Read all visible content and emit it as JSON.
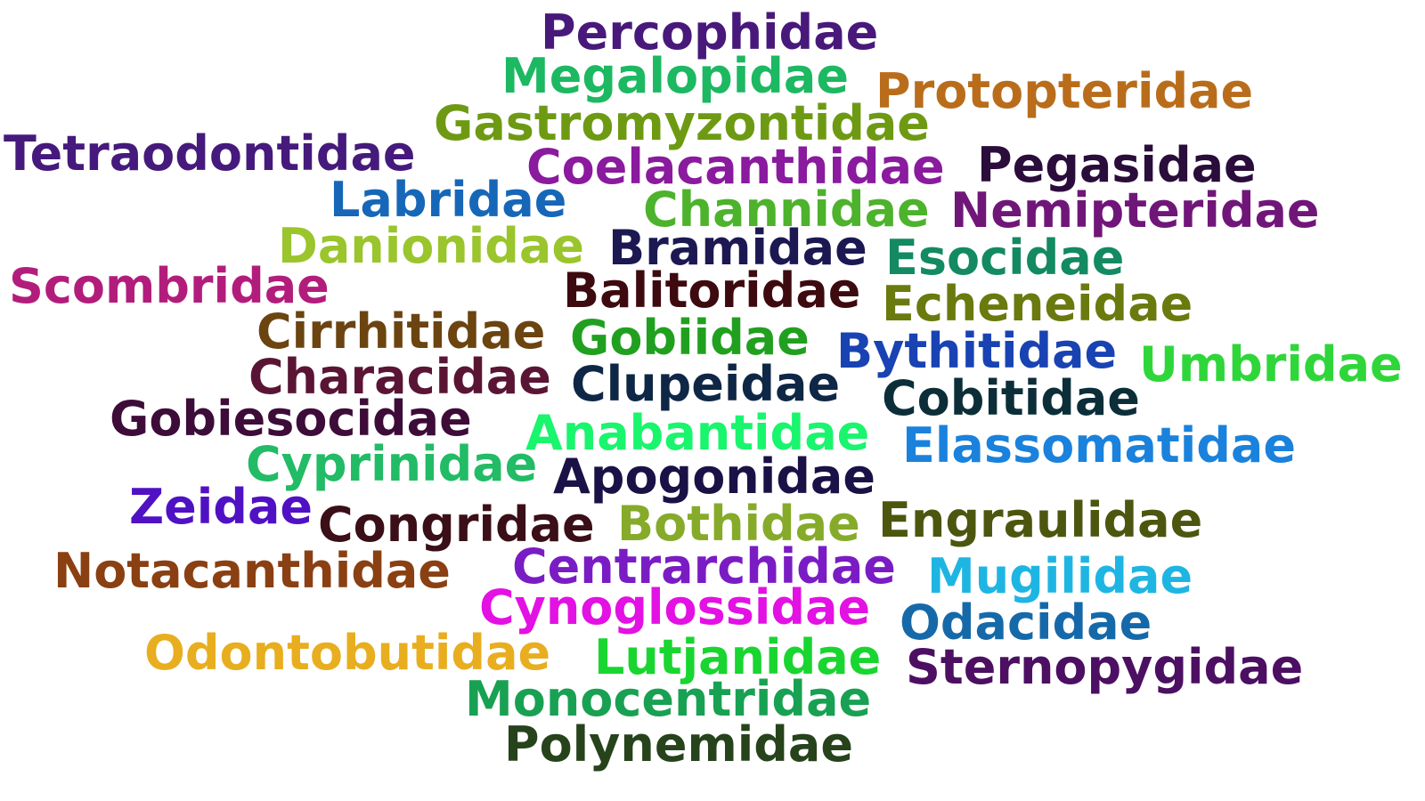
{
  "words": [
    {
      "text": "Percophidae",
      "color": "#48197a"
    },
    {
      "text": "Megalopidae",
      "color": "#1db862"
    },
    {
      "text": "Protopteridae",
      "color": "#b96d1b"
    },
    {
      "text": "Gastromyzontidae",
      "color": "#6e9a13"
    },
    {
      "text": "Tetraodontidae",
      "color": "#451a7c"
    },
    {
      "text": "Coelacanthidae",
      "color": "#8a1a9e"
    },
    {
      "text": "Pegasidae",
      "color": "#2a0d3a"
    },
    {
      "text": "Labridae",
      "color": "#1667b8"
    },
    {
      "text": "Channidae",
      "color": "#4db22c"
    },
    {
      "text": "Nemipteridae",
      "color": "#701679"
    },
    {
      "text": "Danionidae",
      "color": "#9ac52c"
    },
    {
      "text": "Bramidae",
      "color": "#1b1852"
    },
    {
      "text": "Esocidae",
      "color": "#138a62"
    },
    {
      "text": "Scombridae",
      "color": "#b21d7c"
    },
    {
      "text": "Balitoridae",
      "color": "#3d0a10"
    },
    {
      "text": "Echeneidae",
      "color": "#6a7a0e"
    },
    {
      "text": "Cirrhitidae",
      "color": "#6b4410"
    },
    {
      "text": "Gobiidae",
      "color": "#21a020"
    },
    {
      "text": "Bythitidae",
      "color": "#1943b3"
    },
    {
      "text": "Umbridae",
      "color": "#2fd63a"
    },
    {
      "text": "Characidae",
      "color": "#5a1535"
    },
    {
      "text": "Clupeidae",
      "color": "#0f2746"
    },
    {
      "text": "Cobitidae",
      "color": "#0c2e38"
    },
    {
      "text": "Gobiesocidae",
      "color": "#3d0c39"
    },
    {
      "text": "Anabantidae",
      "color": "#19f56d"
    },
    {
      "text": "Elassomatidae",
      "color": "#1a82dc"
    },
    {
      "text": "Cyprinidae",
      "color": "#22bb66"
    },
    {
      "text": "Apogonidae",
      "color": "#1a1246"
    },
    {
      "text": "Zeidae",
      "color": "#5011c4"
    },
    {
      "text": "Congridae",
      "color": "#3a0f17"
    },
    {
      "text": "Bothidae",
      "color": "#86ab2a"
    },
    {
      "text": "Engraulidae",
      "color": "#4d560f"
    },
    {
      "text": "Notacanthidae",
      "color": "#8a4012"
    },
    {
      "text": "Centrarchidae",
      "color": "#7a1cc4"
    },
    {
      "text": "Mugilidae",
      "color": "#1fb5e3"
    },
    {
      "text": "Cynoglossidae",
      "color": "#e311e3"
    },
    {
      "text": "Odacidae",
      "color": "#1669a9"
    },
    {
      "text": "Odontobutidae",
      "color": "#e8ae1f"
    },
    {
      "text": "Lutjanidae",
      "color": "#19d530"
    },
    {
      "text": "Sternopygidae",
      "color": "#4c0f62"
    },
    {
      "text": "Monocentridae",
      "color": "#18a152"
    },
    {
      "text": "Polynemidae",
      "color": "#26431c"
    }
  ]
}
